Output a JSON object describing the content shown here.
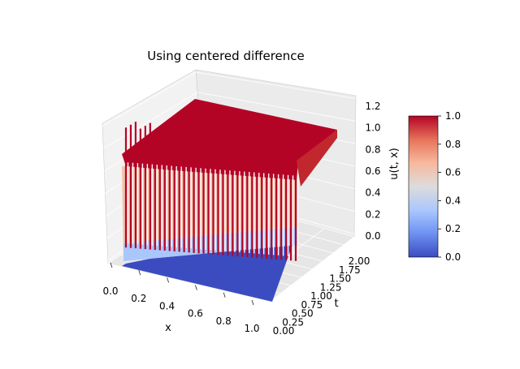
{
  "chart_data": {
    "type": "surface",
    "title": "Using centered difference",
    "xlabel": "x",
    "ylabel": "t",
    "zlabel": "u(t, x)",
    "xlim": [
      0.0,
      1.0
    ],
    "ylim": [
      0.0,
      2.0
    ],
    "zlim": [
      0.0,
      1.25
    ],
    "x_ticks": [
      "0.0",
      "0.2",
      "0.4",
      "0.6",
      "0.8",
      "1.0"
    ],
    "y_ticks": [
      "0.00",
      "0.25",
      "0.50",
      "0.75",
      "1.00",
      "1.25",
      "1.50",
      "1.75",
      "2.00"
    ],
    "z_ticks": [
      "0.0",
      "0.2",
      "0.4",
      "0.6",
      "0.8",
      "1.0",
      "1.2"
    ],
    "colorbar": {
      "colormap": "coolwarm",
      "range": [
        0.0,
        1.0
      ],
      "ticks": [
        "0.0",
        "0.2",
        "0.4",
        "0.6",
        "0.8",
        "1.0"
      ],
      "colors": [
        "#3b4cc0",
        "#6f92f3",
        "#aac7fd",
        "#dddcdc",
        "#f7b89c",
        "#e7745b",
        "#b40426"
      ]
    },
    "surface_description": {
      "initial_condition_t0": 0.0,
      "plateau_value": 1.0,
      "front_x": 1.0,
      "oscillating_spikes": 36,
      "spike_range": [
        0.0,
        1.1
      ]
    },
    "grid": true
  }
}
